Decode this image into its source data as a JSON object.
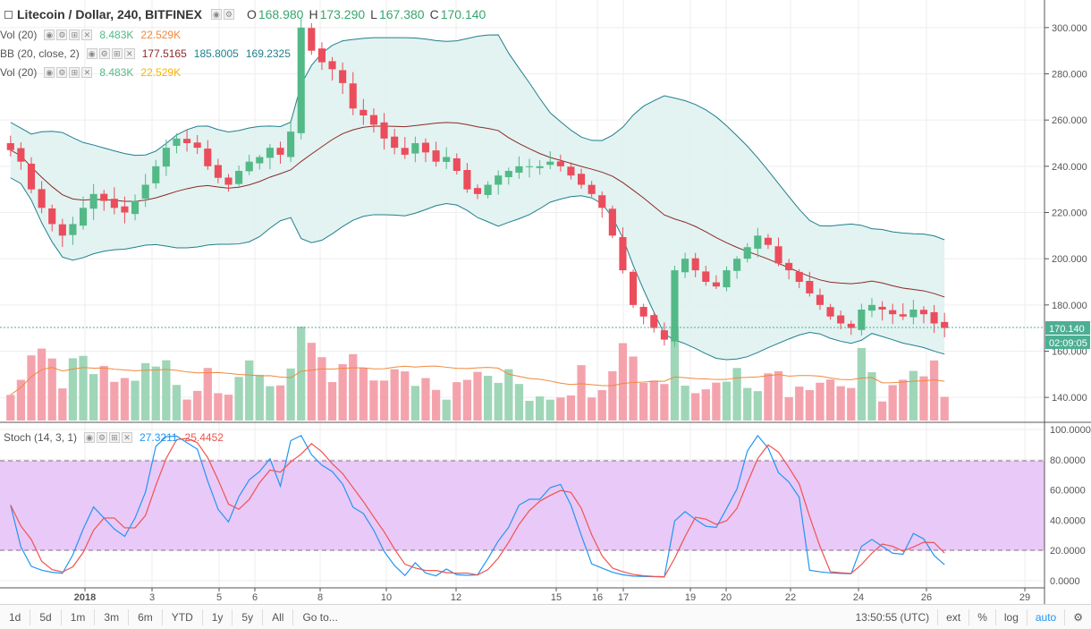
{
  "header": {
    "symbol": "Litecoin / Dollar, 240, BITFINEX",
    "dropdown_icon": "chevron-down-icon",
    "open_label": "O",
    "open": "168.980",
    "high_label": "H",
    "high": "173.290",
    "low_label": "L",
    "low": "167.380",
    "close_label": "C",
    "close": "170.140"
  },
  "indicators": [
    {
      "label": "Vol (20)",
      "v1": "8.483K",
      "v2": "22.529K",
      "c1": "#53b987",
      "c2": "#f0883c"
    },
    {
      "label": "BB (20, close, 2)",
      "v1": "177.5165",
      "v2": "185.8005",
      "v3": "169.2325",
      "c1": "#8b2a2a",
      "c2": "#1f7f8f",
      "c3": "#1f7f8f"
    },
    {
      "label": "Vol (20)",
      "v1": "8.483K",
      "v2": "22.529K",
      "c1": "#53b987",
      "c2": "#f5b400"
    }
  ],
  "stoch": {
    "label": "Stoch (14, 3, 1)",
    "k": "27.3211",
    "d": "25.4452",
    "k_color": "#2196f3",
    "d_color": "#ef5350"
  },
  "price_axis": {
    "labels": [
      "300.000",
      "280.000",
      "260.000",
      "240.000",
      "220.000",
      "200.000",
      "180.000",
      "160.000",
      "140.000"
    ],
    "last_price": "170.140",
    "countdown": "02:09:05"
  },
  "stoch_axis": {
    "labels": [
      "100.0000",
      "80.0000",
      "60.0000",
      "40.0000",
      "20.0000",
      "0.0000"
    ]
  },
  "time_axis": {
    "labels": [
      "2018",
      "3",
      "5",
      "6",
      "8",
      "10",
      "12",
      "15",
      "16",
      "17",
      "19",
      "20",
      "22",
      "24",
      "26",
      "29"
    ]
  },
  "bottom_bar": {
    "timeframes": [
      "1d",
      "5d",
      "1m",
      "3m",
      "6m",
      "YTD",
      "1y",
      "5y",
      "All",
      "Go to..."
    ],
    "clock": "13:50:55 (UTC)",
    "options": [
      "ext",
      "%",
      "log",
      "auto"
    ],
    "gear_icon": "gear-icon"
  },
  "colors": {
    "up": "#53b987",
    "down": "#eb4d5c",
    "up_vol": "#9fd6b8",
    "down_vol": "#f4a3ad",
    "bb_band": "#1f7f8f",
    "bb_fill": "#dff2f0",
    "bb_mid": "#8b2a2a",
    "vol_ma": "#f0883c",
    "stoch_bg": "#e9c9f7",
    "last_price": "#4caf93"
  },
  "chart_data": {
    "type": "candlestick",
    "title": "Litecoin / Dollar, 240, BITFINEX",
    "y_range": [
      130,
      310
    ],
    "stoch_range": [
      0,
      100
    ],
    "stoch_bands": [
      20,
      80
    ],
    "closes": [
      247,
      242,
      230,
      222,
      215,
      210,
      215,
      222,
      228,
      225,
      222,
      220,
      225,
      232,
      240,
      248,
      252,
      250,
      248,
      240,
      235,
      232,
      238,
      242,
      244,
      248,
      245,
      255,
      300,
      290,
      285,
      282,
      276,
      265,
      262,
      258,
      252,
      248,
      245,
      250,
      246,
      242,
      244,
      238,
      230,
      228,
      232,
      236,
      238,
      240,
      240,
      240,
      242,
      240,
      236,
      232,
      228,
      222,
      210,
      195,
      180,
      175,
      170,
      165,
      195,
      200,
      195,
      190,
      188,
      195,
      200,
      205,
      210,
      206,
      198,
      195,
      190,
      185,
      180,
      175,
      172,
      170,
      178,
      180,
      178,
      176,
      175,
      178,
      176,
      172,
      170
    ]
  }
}
